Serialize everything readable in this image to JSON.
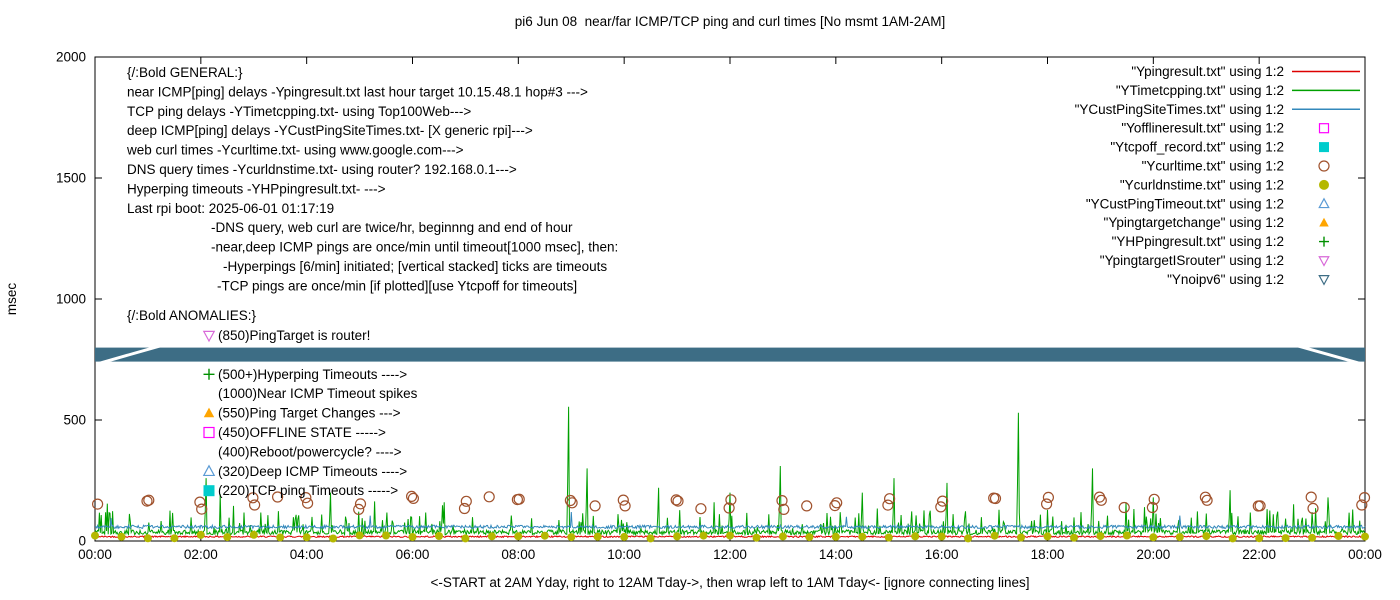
{
  "chart_data": {
    "type": "line",
    "title": "pi6 Jun 08  near/far ICMP/TCP ping and curl times [No msmt 1AM-2AM]",
    "xlabel": "<-START at 2AM Yday, right to 12AM Tday->, then wrap left to 1AM Tday<- [ignore connecting lines]",
    "ylabel": "msec",
    "ylim": [
      0,
      2000
    ],
    "yticks": [
      0,
      500,
      1000,
      1500,
      2000
    ],
    "xtick_labels": [
      "00:00",
      "02:00",
      "04:00",
      "06:00",
      "08:00",
      "10:00",
      "12:00",
      "14:00",
      "16:00",
      "18:00",
      "20:00",
      "22:00",
      "00:00"
    ],
    "x_hours": [
      0,
      24
    ],
    "grid": false,
    "legend_position": "top-right",
    "rng_seed": 42,
    "series": [
      {
        "id": "ping",
        "legend": "\"Ypingresult.txt\" using 1:2",
        "color": "#dd0000",
        "style": "line",
        "baseline": 15,
        "noise": 6
      },
      {
        "id": "tcpping",
        "legend": "\"YTimetcpping.txt\" using 1:2",
        "color": "#00a000",
        "style": "line",
        "baseline": 26,
        "noise": 20,
        "minor_spike_rate": 0.13,
        "minor_spike_max": 90,
        "rare_spike_rate": 0.02,
        "rare_spike_max": 150,
        "spikes": [
          [
            2.1,
            260
          ],
          [
            4.45,
            200
          ],
          [
            6.6,
            160
          ],
          [
            8.95,
            555
          ],
          [
            9.3,
            300
          ],
          [
            10.65,
            220
          ],
          [
            12.0,
            200
          ],
          [
            12.95,
            310
          ],
          [
            14.5,
            200
          ],
          [
            15.1,
            260
          ],
          [
            16.1,
            240
          ],
          [
            17.45,
            530
          ],
          [
            18.85,
            300
          ],
          [
            20.0,
            180
          ],
          [
            21.45,
            210
          ],
          [
            23.3,
            180
          ]
        ]
      },
      {
        "id": "custping",
        "legend": "\"YCustPingSiteTimes.txt\" using 1:2",
        "color": "#3388bb",
        "style": "line",
        "baseline": 52,
        "noise": 13,
        "spikes": [
          [
            0.3,
            95
          ],
          [
            5.2,
            105
          ],
          [
            9.0,
            120
          ],
          [
            14.2,
            100
          ],
          [
            20.5,
            105
          ]
        ]
      },
      {
        "id": "offline",
        "legend": "\"Yofflineresult.txt\" using 1:2",
        "color": "#ff00ff",
        "style": "points",
        "marker": "square-open",
        "points": []
      },
      {
        "id": "tcpoff",
        "legend": "\"Ytcpoff_record.txt\" using 1:2",
        "color": "#00cccc",
        "style": "points",
        "marker": "square-filled",
        "points": []
      },
      {
        "id": "curl",
        "legend": "\"Ycurltime.txt\" using 1:2",
        "color": "#a0522d",
        "style": "points",
        "marker": "circle-open",
        "gen": "hourly-pairs",
        "y_range": [
          130,
          185
        ]
      },
      {
        "id": "curldns",
        "legend": "\"Ycurldnstime.txt\" using 1:2",
        "color": "#b5b800",
        "style": "points",
        "marker": "circle-filled",
        "gen": "half-hourly",
        "y_range": [
          10,
          26
        ]
      },
      {
        "id": "custtimeout",
        "legend": "\"YCustPingTimeout.txt\" using 1:2",
        "color": "#5b9bd5",
        "style": "points",
        "marker": "triangle-open",
        "points": []
      },
      {
        "id": "targetchange",
        "legend": "\"Ypingtargetchange\" using 1:2",
        "color": "#ffa500",
        "style": "points",
        "marker": "triangle-filled",
        "points": []
      },
      {
        "id": "hyperping",
        "legend": "\"YHPpingresult.txt\" using 1:2",
        "color": "#009000",
        "style": "points",
        "marker": "plus",
        "points": []
      },
      {
        "id": "isrouter",
        "legend": "\"YpingtargetISrouter\" using 1:2",
        "color": "#d868d8",
        "style": "points",
        "marker": "nabla",
        "points": []
      },
      {
        "id": "noipv6",
        "legend": "\"Ynoipv6\" using 1:2",
        "color": "#3d6d85",
        "style": "band",
        "marker": "nabla",
        "band_y": 770,
        "band_half": 29
      }
    ],
    "annotations": {
      "general": {
        "lines": [
          {
            "t": "{/:Bold GENERAL:}",
            "dx": 0
          },
          {
            "t": "near ICMP[ping] delays -Ypingresult.txt last hour target 10.15.48.1 hop#3 --->",
            "dx": 0
          },
          {
            "t": "TCP ping delays -YTimetcpping.txt- using Top100Web--->",
            "dx": 0
          },
          {
            "t": "deep ICMP[ping] delays -YCustPingSiteTimes.txt- [X generic rpi]--->",
            "dx": 0
          },
          {
            "t": "web curl times -Ycurltime.txt- using www.google.com--->",
            "dx": 0
          },
          {
            "t": "DNS query times -Ycurldnstime.txt- using router? 192.168.0.1--->",
            "dx": 0
          },
          {
            "t": "Hyperping timeouts -YHPpingresult.txt- --->",
            "dx": 0
          },
          {
            "t": "Last rpi boot: 2025-06-01 01:17:19",
            "dx": 0
          },
          {
            "t": "-DNS query, web curl are twice/hr, beginnng and end of hour",
            "dx": 84
          },
          {
            "t": "-near,deep ICMP pings are once/min until timeout[1000 msec], then:",
            "dx": 84
          },
          {
            "t": "-Hyperpings [6/min] initiated; [vertical stacked] ticks are timeouts",
            "dx": 96
          },
          {
            "t": "-TCP pings are once/min [if plotted][use Ytcpoff for timeouts]",
            "dx": 90
          }
        ]
      },
      "anomalies": {
        "header": "{/:Bold ANOMALIES:}",
        "items": [
          {
            "marker": "nabla",
            "color": "#d868d8",
            "text": "(850)PingTarget is router!"
          },
          {
            "marker": "nabla",
            "color": "#3d6d85",
            "text": ""
          },
          {
            "marker": "plus",
            "color": "#009000",
            "text": "(500+)Hyperping Timeouts ---->"
          },
          {
            "marker": null,
            "color": null,
            "text": "(1000)Near ICMP Timeout spikes"
          },
          {
            "marker": "triangle-filled",
            "color": "#ffa500",
            "text": "(550)Ping Target Changes --->"
          },
          {
            "marker": "square-open",
            "color": "#ff00ff",
            "text": "(450)OFFLINE STATE ----->"
          },
          {
            "marker": null,
            "color": null,
            "text": "(400)Reboot/powercycle? ---->"
          },
          {
            "marker": "triangle-open",
            "color": "#5b9bd5",
            "text": "(320)Deep ICMP Timeouts ---->"
          },
          {
            "marker": "square-filled",
            "color": "#00cccc",
            "text": "(220)TCP ping Timeouts ----->"
          }
        ]
      }
    }
  }
}
